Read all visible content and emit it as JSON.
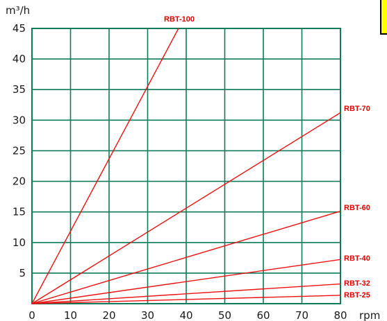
{
  "chart_data": {
    "type": "line",
    "xlabel": "rpm",
    "ylabel": "m³/h",
    "xlim": [
      0,
      80
    ],
    "ylim": [
      0,
      45
    ],
    "x_ticks": [
      "0",
      "10",
      "20",
      "30",
      "40",
      "50",
      "60",
      "70",
      "80"
    ],
    "y_ticks": [
      "5",
      "10",
      "15",
      "20",
      "25",
      "30",
      "35",
      "40",
      "45"
    ],
    "grid": true,
    "colors": {
      "grid": "#0f7a5a",
      "line": "#ee1111",
      "label": "#e00000",
      "corner_box": "#ffff00"
    },
    "series": [
      {
        "name": "RBT-100",
        "points": [
          [
            0,
            0
          ],
          [
            38,
            45
          ]
        ]
      },
      {
        "name": "RBT-70",
        "points": [
          [
            0,
            0
          ],
          [
            82,
            32
          ]
        ]
      },
      {
        "name": "RBT-60",
        "points": [
          [
            0,
            0
          ],
          [
            82,
            15.5
          ]
        ]
      },
      {
        "name": "RBT-40",
        "points": [
          [
            0,
            0
          ],
          [
            82,
            7.4
          ]
        ]
      },
      {
        "name": "RBT-32",
        "points": [
          [
            0,
            0
          ],
          [
            82,
            3.3
          ]
        ]
      },
      {
        "name": "RBT-25",
        "points": [
          [
            0,
            0
          ],
          [
            82,
            1.4
          ]
        ]
      }
    ]
  }
}
